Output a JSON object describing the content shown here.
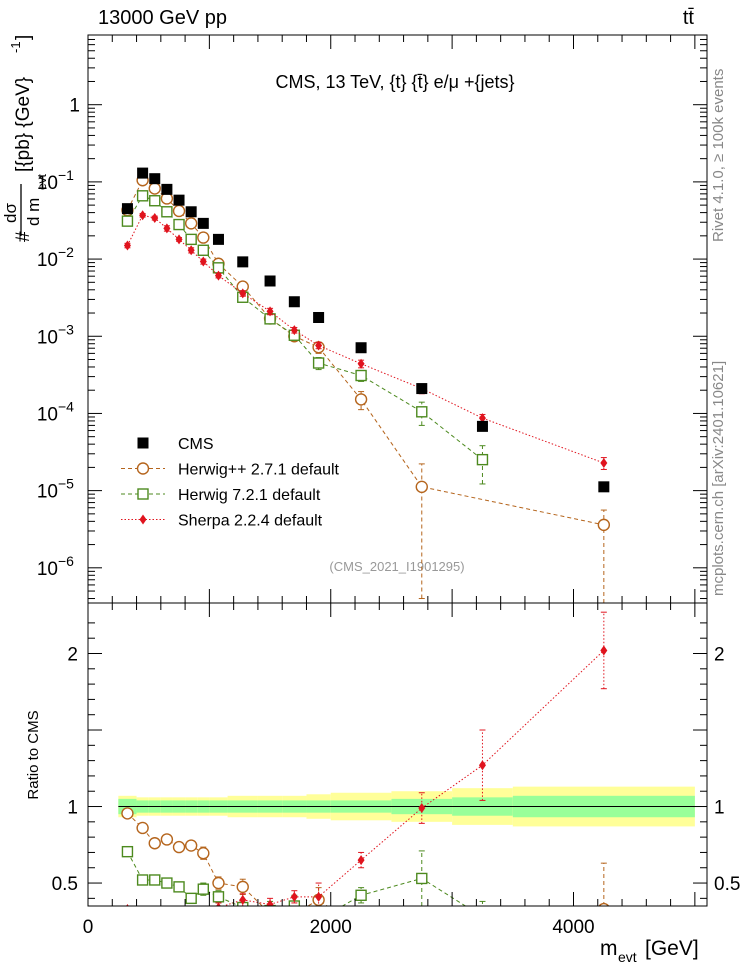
{
  "header": {
    "energy_label": "13000 GeV pp",
    "process_label": "tt̄"
  },
  "side_labels": {
    "rivet": "Rivet 4.1.0, ≥ 100k events",
    "source": "mcplots.cern.ch [arXiv:2401.10621]"
  },
  "chart_data": {
    "type": "scatter",
    "title": "CMS, 13 TeV, {t} {t̄} e/μ +{jets}",
    "analysis_label": "(CMS_2021_I1901295)",
    "main_panel": {
      "ylabel_numerator": "dσ",
      "ylabel_denominator": "d m",
      "ylabel_denominator_sub": "evt",
      "ylabel_prefix": "#",
      "ylabel_units": "[{pb} {GeV}",
      "ylabel_units_exp": "-1",
      "ylabel_units_close": "]",
      "yscale": "log",
      "ylim": [
        3.5e-07,
        8
      ],
      "yticks": [
        {
          "value": 1,
          "label": "1",
          "exp": ""
        },
        {
          "value": 0.1,
          "label": "10",
          "exp": "−1"
        },
        {
          "value": 0.01,
          "label": "10",
          "exp": "−2"
        },
        {
          "value": 0.001,
          "label": "10",
          "exp": "−3"
        },
        {
          "value": 0.0001,
          "label": "10",
          "exp": "−4"
        },
        {
          "value": 1e-05,
          "label": "10",
          "exp": "−5"
        },
        {
          "value": 1e-06,
          "label": "10",
          "exp": "−6"
        }
      ]
    },
    "ratio_panel": {
      "ylabel": "Ratio to CMS",
      "ylim": [
        0.35,
        2.33
      ],
      "yticks": [
        {
          "value": 0.5,
          "label": "0.5"
        },
        {
          "value": 1,
          "label": "1"
        },
        {
          "value": 2,
          "label": "2"
        }
      ]
    },
    "xlim": [
      0,
      5100
    ],
    "xticks": [
      {
        "value": 0,
        "label": "0"
      },
      {
        "value": 2000,
        "label": "2000"
      },
      {
        "value": 4000,
        "label": "4000"
      }
    ],
    "xlabel": "m",
    "xlabel_sub": "evt",
    "xlabel_units": "[GeV]",
    "band_edges": [
      250,
      400,
      500,
      600,
      700,
      800,
      900,
      1000,
      1150,
      1400,
      1600,
      1800,
      2000,
      2500,
      3000,
      3500,
      5000
    ],
    "band_inner_halfwidth": [
      0.05,
      0.04,
      0.04,
      0.04,
      0.04,
      0.04,
      0.04,
      0.04,
      0.04,
      0.04,
      0.04,
      0.04,
      0.04,
      0.05,
      0.06,
      0.07
    ],
    "band_outer_halfwidth": [
      0.07,
      0.06,
      0.06,
      0.06,
      0.06,
      0.06,
      0.06,
      0.06,
      0.07,
      0.07,
      0.07,
      0.08,
      0.09,
      0.1,
      0.12,
      0.13
    ],
    "series": [
      {
        "name": "CMS",
        "color": "#000000",
        "marker": "square-filled",
        "line": "none",
        "x": [
          325,
          450,
          550,
          650,
          750,
          850,
          950,
          1075,
          1275,
          1500,
          1700,
          1900,
          2250,
          2750,
          3250,
          4250
        ],
        "y": [
          0.045,
          0.13,
          0.11,
          0.08,
          0.058,
          0.041,
          0.029,
          0.018,
          0.0092,
          0.0052,
          0.0028,
          0.00175,
          0.00071,
          0.00021,
          6.8e-05,
          1.12e-05
        ]
      },
      {
        "name": "Herwig++ 2.7.1 default",
        "color": "#b5651d",
        "marker": "circle-open",
        "line": "dashed",
        "x": [
          325,
          450,
          550,
          650,
          750,
          850,
          950,
          1075,
          1275,
          1500,
          1700,
          1900,
          2250,
          2750,
          4250
        ],
        "y": [
          0.043,
          0.105,
          0.082,
          0.061,
          0.042,
          0.029,
          0.019,
          0.0087,
          0.0044,
          0.0017,
          0.001,
          0.00072,
          0.000152,
          1.12e-05,
          3.6e-06
        ],
        "err_lo": [
          0.002,
          0.003,
          0.003,
          0.002,
          0.002,
          0.0015,
          0.001,
          0.0006,
          0.0004,
          0.0002,
          0.00012,
          0.00012,
          4e-05,
          1.08e-05,
          3.4e-06
        ],
        "err_hi": [
          0.002,
          0.003,
          0.003,
          0.002,
          0.002,
          0.0015,
          0.001,
          0.0006,
          0.0004,
          0.0002,
          0.00012,
          0.00012,
          4e-05,
          1.1e-05,
          2e-06
        ],
        "ratio": [
          0.955,
          0.86,
          0.76,
          0.785,
          0.735,
          0.745,
          0.695,
          0.5,
          0.475,
          0.3,
          0.3,
          0.39,
          0.19,
          0.05,
          0.33
        ],
        "ratio_err": [
          0.02,
          0.02,
          0.02,
          0.02,
          0.03,
          0.03,
          0.04,
          0.04,
          0.05,
          0.06,
          0.07,
          0.08,
          0.06,
          0.05,
          0.3
        ]
      },
      {
        "name": "Herwig 7.2.1 default",
        "color": "#4d8a1f",
        "marker": "square-open",
        "line": "dashed",
        "x": [
          325,
          450,
          550,
          650,
          750,
          850,
          950,
          1075,
          1275,
          1500,
          1700,
          1900,
          2250,
          2750,
          3250
        ],
        "y": [
          0.031,
          0.066,
          0.057,
          0.041,
          0.028,
          0.018,
          0.013,
          0.0077,
          0.0032,
          0.00168,
          0.00103,
          0.00045,
          0.00031,
          0.000105,
          2.52e-05
        ],
        "err_lo": [
          0.002,
          0.003,
          0.003,
          0.002,
          0.002,
          0.0015,
          0.001,
          0.0006,
          0.0003,
          0.0002,
          0.00012,
          8e-05,
          5e-05,
          3.5e-05,
          1.3e-05
        ],
        "err_hi": [
          0.002,
          0.003,
          0.003,
          0.002,
          0.002,
          0.0015,
          0.001,
          0.0006,
          0.0003,
          0.0002,
          0.00012,
          8e-05,
          5e-05,
          3.5e-05,
          1.3e-05
        ],
        "ratio": [
          0.705,
          0.52,
          0.52,
          0.5,
          0.475,
          0.4,
          0.46,
          0.41,
          0.34,
          0.32,
          0.35,
          0.26,
          0.42,
          0.53,
          0.28
        ],
        "ratio_err": [
          0.02,
          0.02,
          0.02,
          0.02,
          0.03,
          0.03,
          0.04,
          0.04,
          0.05,
          0.06,
          0.07,
          0.08,
          0.05,
          0.18,
          0.1
        ]
      },
      {
        "name": "Sherpa 2.2.4 default",
        "color": "#e0141e",
        "marker": "diamond-filled",
        "line": "dotted",
        "x": [
          325,
          450,
          550,
          650,
          750,
          850,
          950,
          1075,
          1275,
          1500,
          1700,
          1900,
          2250,
          2750,
          3250,
          4250
        ],
        "y": [
          0.015,
          0.037,
          0.034,
          0.025,
          0.018,
          0.013,
          0.0093,
          0.0061,
          0.0036,
          0.0021,
          0.0012,
          0.00076,
          0.00044,
          0.00021,
          8.7e-05,
          2.28e-05
        ],
        "err_lo": [
          0.001,
          0.002,
          0.002,
          0.002,
          0.001,
          0.001,
          0.0007,
          0.0004,
          0.0003,
          0.0002,
          0.0001,
          7e-05,
          5e-05,
          3e-05,
          1e-05,
          4e-06
        ],
        "err_hi": [
          0.001,
          0.002,
          0.002,
          0.002,
          0.001,
          0.001,
          0.0007,
          0.0004,
          0.0003,
          0.0002,
          0.0001,
          7e-05,
          5e-05,
          3e-05,
          1e-05,
          4e-06
        ],
        "ratio": [
          0.33,
          0.28,
          0.3,
          0.31,
          0.31,
          0.32,
          0.32,
          0.34,
          0.39,
          0.36,
          0.41,
          0.41,
          0.65,
          0.99,
          1.27,
          2.02
        ],
        "ratio_err": [
          0.02,
          0.02,
          0.02,
          0.02,
          0.02,
          0.02,
          0.03,
          0.03,
          0.04,
          0.04,
          0.04,
          0.09,
          0.05,
          0.1,
          0.23,
          0.25
        ]
      }
    ]
  }
}
